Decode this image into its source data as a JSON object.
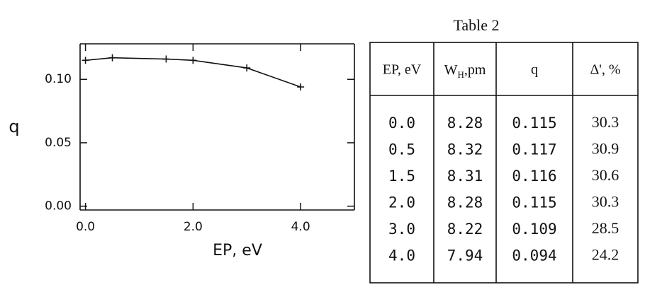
{
  "chart_data": {
    "type": "line",
    "x_label": "EP, eV",
    "y_label": "q",
    "x": [
      0.0,
      0.5,
      1.5,
      2.0,
      3.0,
      4.0
    ],
    "series": [
      {
        "color": "#111111",
        "values": [
          0.115,
          0.117,
          0.116,
          0.115,
          0.109,
          0.094
        ]
      }
    ],
    "xlim": [
      -0.1,
      5.0
    ],
    "ylim": [
      -0.003,
      0.128
    ],
    "xticks": [
      {
        "value": 0,
        "label": "0.0"
      },
      {
        "value": 2,
        "label": "2.0"
      },
      {
        "value": 4,
        "label": "4.0"
      }
    ],
    "yticks": [
      {
        "value": 0,
        "label": "0.00"
      },
      {
        "value": 0.05,
        "label": "0.05"
      },
      {
        "value": 0.1,
        "label": "0.10"
      }
    ]
  },
  "table": {
    "title": "Table 2",
    "header": [
      "EP, eV",
      {
        "main": "W",
        "sub": "H",
        "rest": ",pm"
      },
      "q",
      "Δ', %"
    ],
    "rows": [
      [
        "0.0",
        "8.28",
        "0.115",
        "30.3"
      ],
      [
        "0.5",
        "8.32",
        "0.117",
        "30.9"
      ],
      [
        "1.5",
        "8.31",
        "0.116",
        "30.6"
      ],
      [
        "2.0",
        "8.28",
        "0.115",
        "30.3"
      ],
      [
        "3.0",
        "8.22",
        "0.109",
        "28.5"
      ],
      [
        "4.0",
        "7.94",
        "0.094",
        "24.2"
      ]
    ]
  }
}
